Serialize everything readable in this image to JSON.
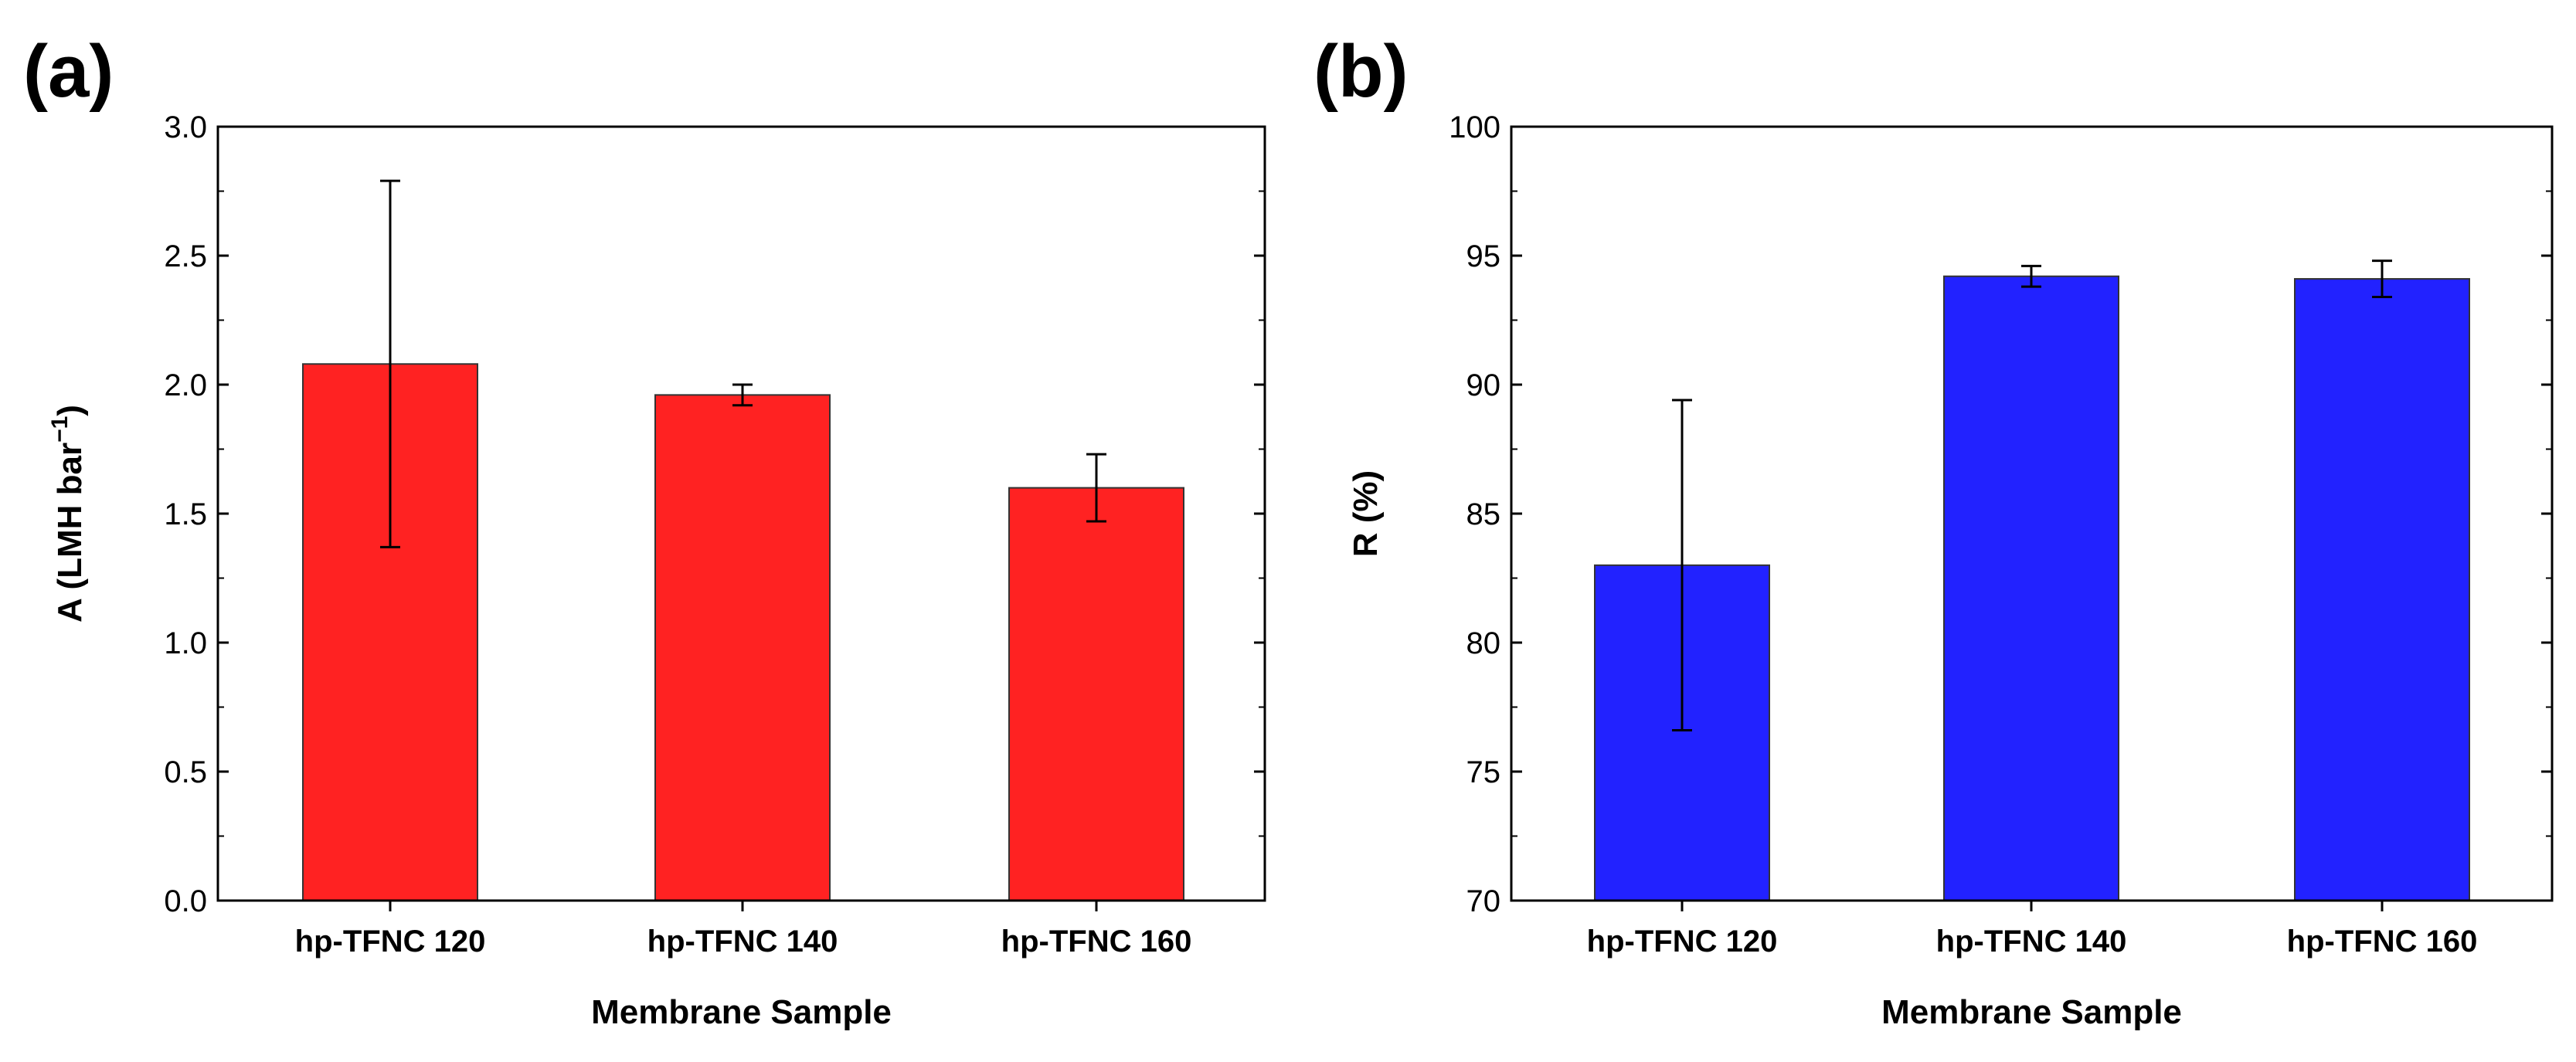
{
  "chart_data": [
    {
      "panel_label": "(a)",
      "type": "bar",
      "categories": [
        "hp-TFNC 120",
        "hp-TFNC 140",
        "hp-TFNC 160"
      ],
      "values": [
        2.08,
        1.96,
        1.6
      ],
      "error_low": [
        1.37,
        1.92,
        1.47
      ],
      "error_high": [
        2.79,
        2.0,
        1.73
      ],
      "xlabel": "Membrane Sample",
      "ylabel": "A (LMH bar",
      "ylabel_superscript": "−1",
      "ylabel_suffix": ")",
      "ylim": [
        0.0,
        3.0
      ],
      "yticks": [
        0.0,
        0.5,
        1.0,
        1.5,
        2.0,
        2.5,
        3.0
      ],
      "ytick_labels": [
        "0.0",
        "0.5",
        "1.0",
        "1.5",
        "2.0",
        "2.5",
        "3.0"
      ],
      "bar_color": "#ff2222",
      "grid": false
    },
    {
      "panel_label": "(b)",
      "type": "bar",
      "categories": [
        "hp-TFNC 120",
        "hp-TFNC 140",
        "hp-TFNC 160"
      ],
      "values": [
        83.0,
        94.2,
        94.1
      ],
      "error_low": [
        76.6,
        93.8,
        93.4
      ],
      "error_high": [
        89.4,
        94.6,
        94.8
      ],
      "xlabel": "Membrane Sample",
      "ylabel": "R (%)",
      "ylabel_superscript": "",
      "ylabel_suffix": "",
      "ylim": [
        70,
        100
      ],
      "yticks": [
        70,
        75,
        80,
        85,
        90,
        95,
        100
      ],
      "ytick_labels": [
        "70",
        "75",
        "80",
        "85",
        "90",
        "95",
        "100"
      ],
      "bar_color": "#2222ff",
      "grid": false
    }
  ]
}
